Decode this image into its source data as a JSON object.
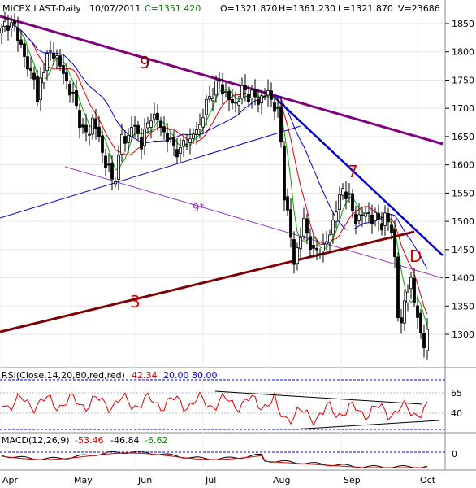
{
  "header": {
    "symbol": "MICEX LAST-Daily",
    "date": "10/07/2011",
    "close": "C=1351.420",
    "open": "O=1321.870",
    "high": "H=1361.230",
    "low": "L=1321.870",
    "volume": "V=23686"
  },
  "rsi": {
    "label": "RSI(Close,14,20,80,red,red)",
    "value": "42.34",
    "lower": "20.00",
    "upper": "80.00",
    "ticks": [
      "65",
      "40"
    ]
  },
  "macd": {
    "label": "MACD(12,26,9)",
    "v1": "-53.46",
    "v2": "-46.84",
    "v3": "-6.62",
    "ticks": [
      "0"
    ]
  },
  "chart_data": {
    "type": "candlestick",
    "y_ticks": [
      1850,
      1800,
      1750,
      1700,
      1650,
      1600,
      1550,
      1500,
      1450,
      1400,
      1350,
      1300
    ],
    "ylim": [
      1245,
      1870
    ],
    "months": [
      "Apr",
      "May",
      "Jun",
      "Jul",
      "Aug",
      "Sep",
      "Oct"
    ],
    "annotations": [
      "9",
      "7",
      "9*",
      "3",
      "D"
    ],
    "trendlines": [
      {
        "label": "9",
        "color": "#800080"
      },
      {
        "label": "7",
        "color": "#0000cc"
      },
      {
        "label": "9*",
        "color": "#9933cc"
      },
      {
        "label": "3",
        "color": "#800000"
      }
    ],
    "colors": {
      "price": "#000000",
      "ma_fast": "#00aa00",
      "ma_mid": "#dd0000",
      "ma_slow": "#0000dd",
      "rsi": "#dd0000",
      "macd": "#000000",
      "signal": "#dd0000"
    }
  }
}
